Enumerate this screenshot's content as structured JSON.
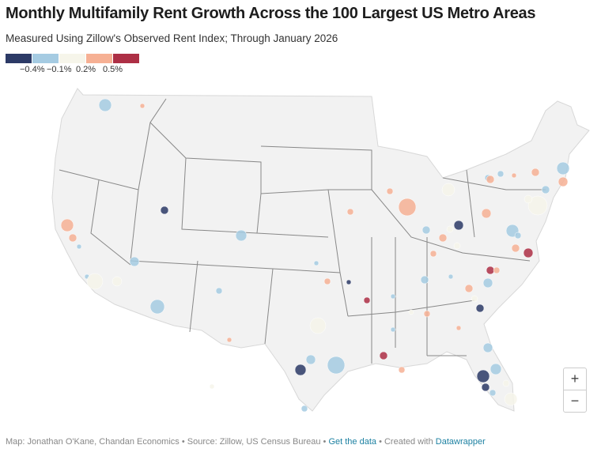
{
  "header": {
    "title": "Monthly Multifamily Rent Growth Across the 100 Largest US Metro Areas",
    "subtitle": "Measured Using Zillow's Observed Rent Index; Through January 2026"
  },
  "legend": {
    "colors": [
      "#2c3a66",
      "#a5cbe2",
      "#f6f5ea",
      "#f6b094",
      "#ad2f45"
    ],
    "labels": [
      "−0.4%",
      "−0.1%",
      "0.2%",
      "0.5%"
    ]
  },
  "zoom_controls": {
    "zoom_in": "+",
    "zoom_out": "−"
  },
  "footer": {
    "credit": "Map: Jonathan O'Kane, Chandan Economics • Source: Zillow, US Census Bureau • ",
    "get_data": "Get the data",
    "sep": " • Created with ",
    "datawrapper": "Datawrapper"
  }
}
